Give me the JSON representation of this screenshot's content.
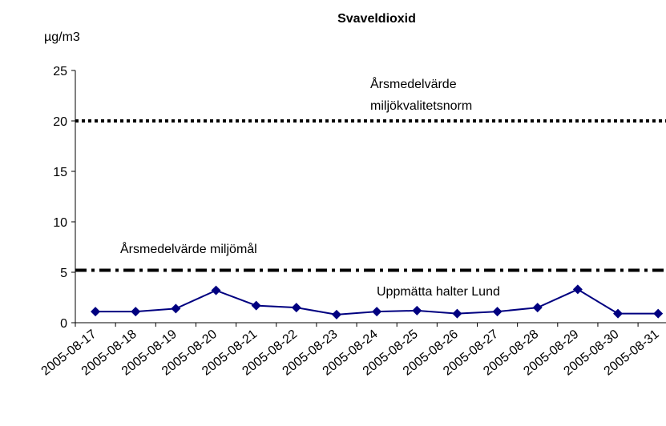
{
  "chart_data": {
    "type": "line",
    "title": "Svaveldioxid",
    "y_label": "µg/m3",
    "categories": [
      "2005-08-17",
      "2005-08-18",
      "2005-08-19",
      "2005-08-20",
      "2005-08-21",
      "2005-08-22",
      "2005-08-23",
      "2005-08-24",
      "2005-08-25",
      "2005-08-26",
      "2005-08-27",
      "2005-08-28",
      "2005-08-29",
      "2005-08-30",
      "2005-08-31"
    ],
    "series": [
      {
        "name": "Uppmätta halter Lund",
        "color": "#000080",
        "values": [
          1.1,
          1.1,
          1.4,
          3.2,
          1.7,
          1.5,
          0.8,
          1.1,
          1.2,
          0.9,
          1.1,
          1.5,
          3.3,
          0.9,
          0.9
        ]
      }
    ],
    "reference_lines": [
      {
        "label_lines": [
          "Årsmedelvärde",
          "miljökvalitetsnorm"
        ],
        "value": 20,
        "style": "dotted",
        "color": "#000000"
      },
      {
        "label_lines": [
          "Årsmedelvärde miljömål"
        ],
        "value": 5.2,
        "style": "dashdot",
        "color": "#000000"
      }
    ],
    "ylim": [
      0,
      25
    ],
    "yticks": [
      0,
      5,
      10,
      15,
      20,
      25
    ],
    "grid": false
  }
}
